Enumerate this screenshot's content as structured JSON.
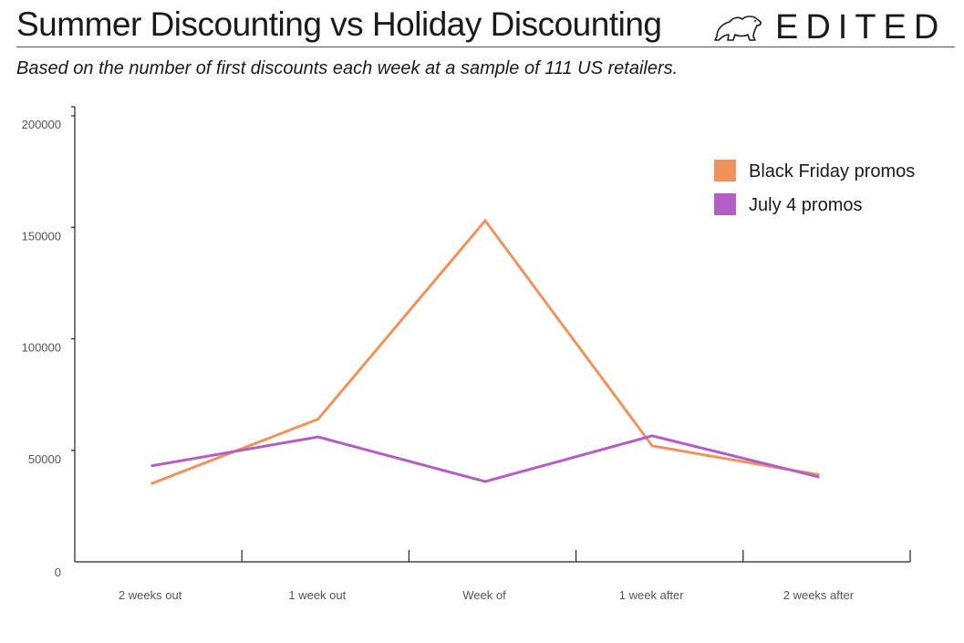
{
  "header": {
    "title": "Summer Discounting vs Holiday Discounting",
    "subtitle": "Based on the number of first discounts each week at a sample of 111 US retailers.",
    "logo_text": "EDITED",
    "logo_icon": "polar-bear-icon"
  },
  "chart_data": {
    "type": "line",
    "title": "Summer Discounting vs Holiday Discounting",
    "categories": [
      "2 weeks out",
      "1 week out",
      "Week of",
      "1 week after",
      "2 weeks after"
    ],
    "y_ticks": [
      "0",
      "50000",
      "100000",
      "150000",
      "200000"
    ],
    "ylim": [
      0,
      200000
    ],
    "grid": false,
    "legend_position": "top-right",
    "series": [
      {
        "name": "Black Friday promos",
        "color": "#f0935a",
        "values": [
          35000,
          64000,
          153000,
          52000,
          39000
        ]
      },
      {
        "name": "July 4 promos",
        "color": "#b25ec4",
        "values": [
          43000,
          56000,
          36000,
          56500,
          38000
        ]
      }
    ]
  }
}
